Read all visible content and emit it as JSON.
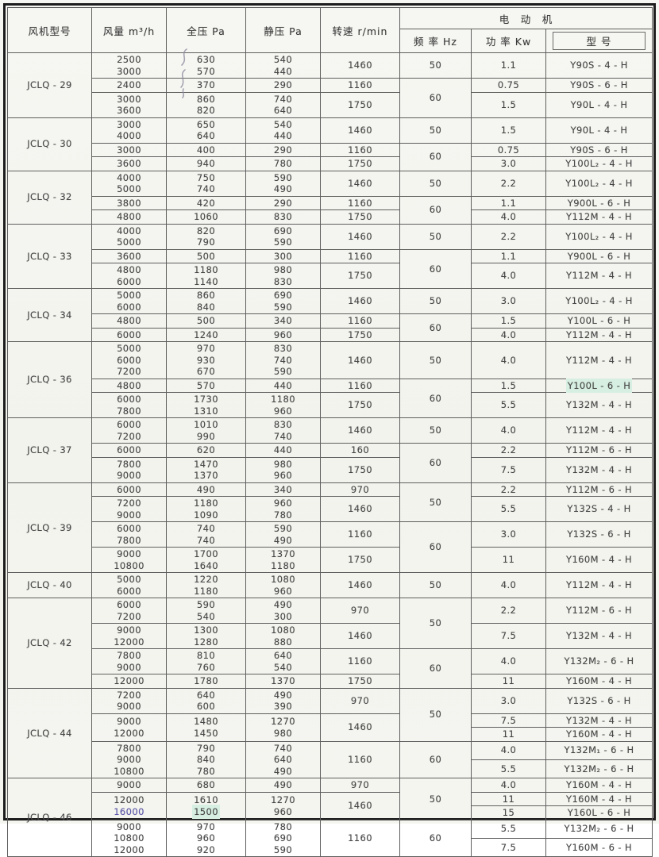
{
  "table": {
    "headers": {
      "fan_model": "风机型号",
      "air_volume": "风量 m³/h",
      "total_pressure": "全压 Pa",
      "static_pressure": "静压 Pa",
      "speed": "转速 r/min",
      "motor_group": "电　动　机",
      "frequency": "频 率 Hz",
      "power": "功 率 Kw",
      "motor_model": "型 号"
    },
    "colors": {
      "ink_annotation": "#5a57b0",
      "cell_highlight": "#d7efe2",
      "border": "#5e5e5e",
      "text": "#474747"
    },
    "sections": [
      {
        "model": "JCLQ - 29",
        "rows": [
          {
            "flow": [
              "2500",
              "3000"
            ],
            "tp": [
              "630",
              "570"
            ],
            "sp": [
              "540",
              "440"
            ],
            "rpm": "1460",
            "freq": "50",
            "freq_span": 1,
            "power": "1.1",
            "motor": "Y90S - 4 - H"
          },
          {
            "flow": [
              "2400"
            ],
            "tp": [
              "370"
            ],
            "sp": [
              "290"
            ],
            "rpm": "1160",
            "freq": "60",
            "freq_span": 2,
            "power": "0.75",
            "motor": "Y90S - 6 - H"
          },
          {
            "flow": [
              "3000",
              "3600"
            ],
            "tp": [
              "860",
              "820"
            ],
            "sp": [
              "740",
              "640"
            ],
            "rpm": "1750",
            "power": "1.5",
            "motor": "Y90L - 4 - H"
          }
        ]
      },
      {
        "model": "JCLQ - 30",
        "rows": [
          {
            "flow": [
              "3000",
              "4000"
            ],
            "tp": [
              "650",
              "640"
            ],
            "sp": [
              "540",
              "440"
            ],
            "rpm": "1460",
            "freq": "50",
            "freq_span": 1,
            "power": "1.5",
            "motor": "Y90L - 4 - H"
          },
          {
            "flow": [
              "3000"
            ],
            "tp": [
              "400"
            ],
            "sp": [
              "290"
            ],
            "rpm": "1160",
            "freq": "60",
            "freq_span": 2,
            "power": "0.75",
            "motor": "Y90S - 6 - H"
          },
          {
            "flow": [
              "3600"
            ],
            "tp": [
              "940"
            ],
            "sp": [
              "780"
            ],
            "rpm": "1750",
            "power": "3.0",
            "motor": "Y100L₂ - 4 - H"
          }
        ]
      },
      {
        "model": "JCLQ - 32",
        "rows": [
          {
            "flow": [
              "4000",
              "5000"
            ],
            "tp": [
              "750",
              "740"
            ],
            "sp": [
              "590",
              "490"
            ],
            "rpm": "1460",
            "freq": "50",
            "freq_span": 1,
            "power": "2.2",
            "motor": "Y100L₂ - 4 - H"
          },
          {
            "flow": [
              "3800"
            ],
            "tp": [
              "420"
            ],
            "sp": [
              "290"
            ],
            "rpm": "1160",
            "freq": "60",
            "freq_span": 2,
            "power": "1.1",
            "motor": "Y900L - 6 - H"
          },
          {
            "flow": [
              "4800"
            ],
            "tp": [
              "1060"
            ],
            "sp": [
              "830"
            ],
            "rpm": "1750",
            "power": "4.0",
            "motor": "Y112M - 4 - H"
          }
        ]
      },
      {
        "model": "JCLQ - 33",
        "rows": [
          {
            "flow": [
              "4000",
              "5000"
            ],
            "tp": [
              "820",
              "790"
            ],
            "sp": [
              "690",
              "590"
            ],
            "rpm": "1460",
            "freq": "50",
            "freq_span": 1,
            "power": "2.2",
            "motor": "Y100L₂ - 4 - H"
          },
          {
            "flow": [
              "3600"
            ],
            "tp": [
              "500"
            ],
            "sp": [
              "300"
            ],
            "rpm": "1160",
            "freq": "60",
            "freq_span": 2,
            "power": "1.1",
            "motor": "Y900L - 6 - H"
          },
          {
            "flow": [
              "4800",
              "6000"
            ],
            "tp": [
              "1180",
              "1140"
            ],
            "sp": [
              "980",
              "830"
            ],
            "rpm": "1750",
            "power": "4.0",
            "motor": "Y112M - 4 - H"
          }
        ]
      },
      {
        "model": "JCLQ - 34",
        "rows": [
          {
            "flow": [
              "5000",
              "6000"
            ],
            "tp": [
              "860",
              "840"
            ],
            "sp": [
              "690",
              "590"
            ],
            "rpm": "1460",
            "freq": "50",
            "freq_span": 1,
            "power": "3.0",
            "motor": "Y100L₂ - 4 - H"
          },
          {
            "flow": [
              "4800"
            ],
            "tp": [
              "500"
            ],
            "sp": [
              "340"
            ],
            "rpm": "1160",
            "freq": "60",
            "freq_span": 2,
            "power": "1.5",
            "motor": "Y100L - 6 - H"
          },
          {
            "flow": [
              "6000"
            ],
            "tp": [
              "1240"
            ],
            "sp": [
              "960"
            ],
            "rpm": "1750",
            "power": "4.0",
            "motor": "Y112M - 4 - H"
          }
        ]
      },
      {
        "model": "JCLQ - 36",
        "rows": [
          {
            "flow": [
              "5000",
              "6000",
              "7200"
            ],
            "tp": [
              "970",
              "930",
              "670"
            ],
            "sp": [
              "830",
              "740",
              "590"
            ],
            "rpm": "1460",
            "freq": "50",
            "freq_span": 1,
            "power": "4.0",
            "motor": "Y112M - 4 - H"
          },
          {
            "flow": [
              "4800"
            ],
            "tp": [
              "570"
            ],
            "sp": [
              "440"
            ],
            "rpm": "1160",
            "freq": "60",
            "freq_span": 2,
            "power": "1.5",
            "motor": {
              "t": "Y100L - 6 - H",
              "hl": true
            }
          },
          {
            "flow": [
              "6000",
              "7800"
            ],
            "tp": [
              "1730",
              "1310"
            ],
            "sp": [
              "1180",
              "960"
            ],
            "rpm": "1750",
            "power": "5.5",
            "motor": "Y132M - 4 - H"
          }
        ]
      },
      {
        "model": "JCLQ - 37",
        "rows": [
          {
            "flow": [
              "6000",
              "7200"
            ],
            "tp": [
              "1010",
              "990"
            ],
            "sp": [
              "830",
              "740"
            ],
            "rpm": "1460",
            "freq": "50",
            "freq_span": 1,
            "power": "4.0",
            "motor": "Y112M - 4 - H"
          },
          {
            "flow": [
              "6000"
            ],
            "tp": [
              "620"
            ],
            "sp": [
              "440"
            ],
            "rpm": "160",
            "freq": "60",
            "freq_span": 2,
            "power": "2.2",
            "motor": "Y112M - 6 - H"
          },
          {
            "flow": [
              "7800",
              "9000"
            ],
            "tp": [
              "1470",
              "1370"
            ],
            "sp": [
              "980",
              "960"
            ],
            "rpm": "1750",
            "power": "7.5",
            "motor": "Y132M - 4 - H"
          }
        ]
      },
      {
        "model": "JCLQ - 39",
        "rows": [
          {
            "flow": [
              "6000"
            ],
            "tp": [
              "490"
            ],
            "sp": [
              "340"
            ],
            "rpm": "970",
            "freq": "50",
            "freq_span": 2,
            "power": "2.2",
            "motor": "Y112M - 6 - H"
          },
          {
            "flow": [
              "7200",
              "9000"
            ],
            "tp": [
              "1180",
              "1090"
            ],
            "sp": [
              "960",
              "780"
            ],
            "rpm": "1460",
            "power": "5.5",
            "motor": "Y132S - 4 - H"
          },
          {
            "flow": [
              "6000",
              "7800"
            ],
            "tp": [
              "740",
              "740"
            ],
            "sp": [
              "590",
              "490"
            ],
            "rpm": "1160",
            "freq": "60",
            "freq_span": 2,
            "power": "3.0",
            "motor": "Y132S - 6 - H"
          },
          {
            "flow": [
              "9000",
              "10800"
            ],
            "tp": [
              "1700",
              "1640"
            ],
            "sp": [
              "1370",
              "1180"
            ],
            "rpm": "1750",
            "power": "11",
            "motor": "Y160M - 4 - H"
          }
        ]
      },
      {
        "model": "JCLQ - 40",
        "rows": [
          {
            "flow": [
              "5000",
              "6000"
            ],
            "tp": [
              "1220",
              "1180"
            ],
            "sp": [
              "1080",
              "960"
            ],
            "rpm": "1460",
            "freq": "50",
            "freq_span": 1,
            "power": "4.0",
            "motor": "Y112M - 4 - H"
          }
        ]
      },
      {
        "model": "JCLQ - 42",
        "rows": [
          {
            "flow": [
              "6000",
              "7200"
            ],
            "tp": [
              "590",
              "540"
            ],
            "sp": [
              "490",
              "300"
            ],
            "rpm": "970",
            "freq": "50",
            "freq_span": 2,
            "power": "2.2",
            "motor": "Y112M - 6 - H"
          },
          {
            "flow": [
              "9000",
              "12000"
            ],
            "tp": [
              "1300",
              "1280"
            ],
            "sp": [
              "1080",
              "880"
            ],
            "rpm": "1460",
            "power": "7.5",
            "motor": "Y132M - 4 - H"
          },
          {
            "flow": [
              "7800",
              "9000"
            ],
            "tp": [
              "810",
              "760"
            ],
            "sp": [
              "640",
              "540"
            ],
            "rpm": "1160",
            "freq": "60",
            "freq_span": 2,
            "power": "4.0",
            "motor": "Y132M₂ - 6 - H"
          },
          {
            "flow": [
              "12000"
            ],
            "tp": [
              "1780"
            ],
            "sp": [
              "1370"
            ],
            "rpm": "1750",
            "power": "11",
            "motor": "Y160M - 4 - H"
          }
        ]
      },
      {
        "model": "JCLQ - 44",
        "rows": [
          {
            "flow": [
              "7200",
              "9000"
            ],
            "tp": [
              "640",
              "600"
            ],
            "sp": [
              "490",
              "390"
            ],
            "rpm": "970",
            "freq": "50",
            "freq_span": 3,
            "power": "3.0",
            "motor": "Y132S - 6 - H"
          },
          {
            "flow": [
              "9000",
              "12000"
            ],
            "tp": [
              "1480",
              "1450"
            ],
            "sp": [
              "1270",
              "980"
            ],
            "rpm": "1460",
            "span": 2,
            "power": "7.5",
            "motor": "Y132M - 4 - H"
          },
          {
            "power": "11",
            "motor": "Y160M - 4 - H"
          },
          {
            "flow": [
              "7800",
              "9000",
              "10800"
            ],
            "tp": [
              "790",
              "840",
              "780"
            ],
            "sp": [
              "740",
              "640",
              "490"
            ],
            "rpm": "1160",
            "span": 2,
            "freq": "60",
            "freq_span": 2,
            "power": "4.0",
            "motor": "Y132M₁ - 6 - H"
          },
          {
            "power": "5.5",
            "motor": "Y132M₂ - 6 - H"
          }
        ]
      },
      {
        "model": "JCLQ - 46",
        "rows": [
          {
            "flow": [
              "9000"
            ],
            "tp": [
              "680"
            ],
            "sp": [
              "490"
            ],
            "rpm": "970",
            "freq": "50",
            "freq_span": 3,
            "power": "4.0",
            "motor": "Y160M - 4 - H"
          },
          {
            "flow": [
              "12000",
              {
                "t": "16000",
                "c": "ink"
              }
            ],
            "tp": [
              "1610",
              {
                "t": "1500",
                "hl": true
              }
            ],
            "sp": [
              "1270",
              "960"
            ],
            "rpm": "1460",
            "span": 2,
            "power": "11",
            "motor": "Y160M - 4 - H"
          },
          {
            "power": "15",
            "motor": "Y160L - 6 - H"
          },
          {
            "flow": [
              "9000",
              "10800",
              "12000"
            ],
            "tp": [
              "970",
              "960",
              "920"
            ],
            "sp": [
              "780",
              "690",
              "590"
            ],
            "rpm": "1160",
            "span": 2,
            "freq": "60",
            "freq_span": 2,
            "power": "5.5",
            "motor": "Y132M₂ - 6 - H"
          },
          {
            "power": "7.5",
            "motor": "Y160M - 6 - H"
          }
        ]
      }
    ]
  }
}
